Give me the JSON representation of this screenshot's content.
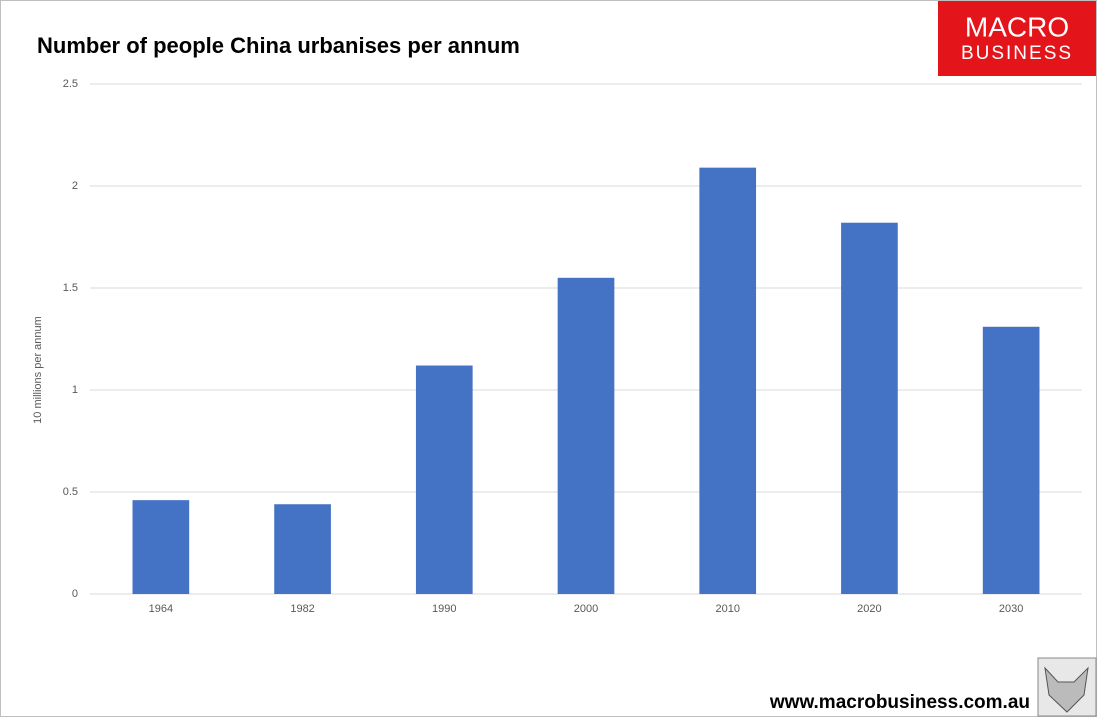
{
  "chart_data": {
    "type": "bar",
    "title": "Number of people China urbanises per annum",
    "y_label": "10 millions per annum",
    "categories": [
      "1964",
      "1982",
      "1990",
      "2000",
      "2010",
      "2020",
      "2030"
    ],
    "values": [
      0.46,
      0.44,
      1.12,
      1.55,
      2.09,
      1.82,
      1.31
    ],
    "color": "#4472c4",
    "ylim": [
      0,
      2.5
    ],
    "yticks": [
      0,
      0.5,
      1,
      1.5,
      2,
      2.5
    ],
    "grid": true,
    "logo": [
      "MACRO",
      "BUSINESS"
    ],
    "source": "www.macrobusiness.com.au"
  }
}
